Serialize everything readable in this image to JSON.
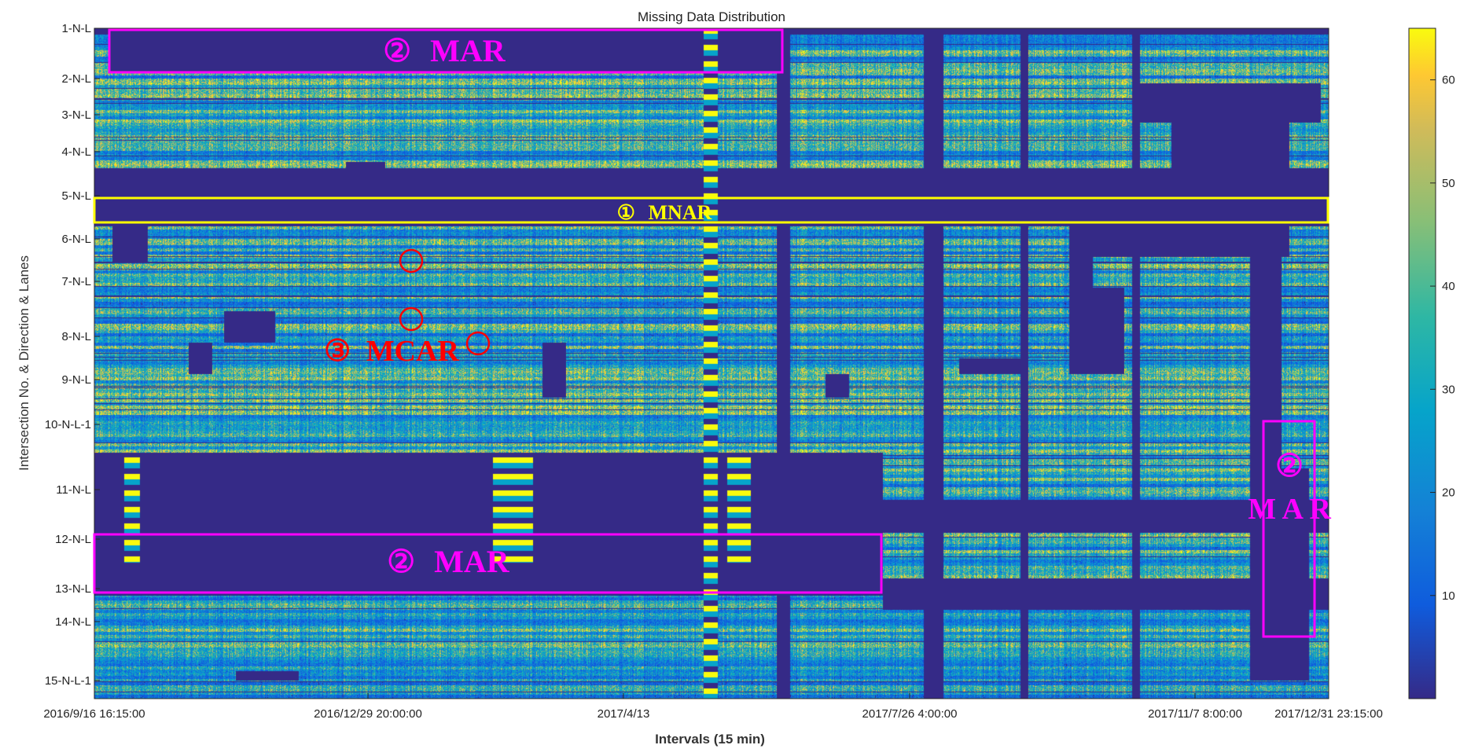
{
  "chart_data": {
    "type": "heatmap",
    "title": "Missing Data Distribution",
    "xlabel": "Intervals (15 min)",
    "ylabel": "Intersection No. & Direction & Lanes",
    "x_ticks": [
      "2016/9/16  16:15:00",
      "2016/12/29  20:00:00",
      "2017/4/13",
      "2017/7/26  4:00:00",
      "2017/11/7  8:00:00",
      "2017/12/31  23:15:00"
    ],
    "x_range": [
      "2016/9/16 16:15:00",
      "2017/12/31 23:15:00"
    ],
    "y_ticks": [
      "1-N-L",
      "2-N-L",
      "3-N-L",
      "4-N-L",
      "5-N-L",
      "6-N-L",
      "7-N-L",
      "8-N-L",
      "9-N-L",
      "10-N-L-1",
      "11-N-L",
      "12-N-L",
      "13-N-L",
      "14-N-L",
      "15-N-L-1"
    ],
    "colorbar": {
      "ticks": [
        10,
        20,
        30,
        40,
        50,
        60
      ],
      "range": [
        0,
        65
      ],
      "colormap": "parula"
    },
    "annotations": [
      {
        "circled": "②",
        "label": "MAR",
        "color": "#ff00ff"
      },
      {
        "circled": "①",
        "label": "MNAR",
        "color": "#ffff00"
      },
      {
        "circled": "③",
        "label": "MCAR",
        "color": "#ff0000"
      },
      {
        "circled": "②",
        "label": "MAR",
        "color": "#ff00ff"
      },
      {
        "circled": "②",
        "label": "M A R",
        "color": "#ff00ff"
      }
    ]
  }
}
